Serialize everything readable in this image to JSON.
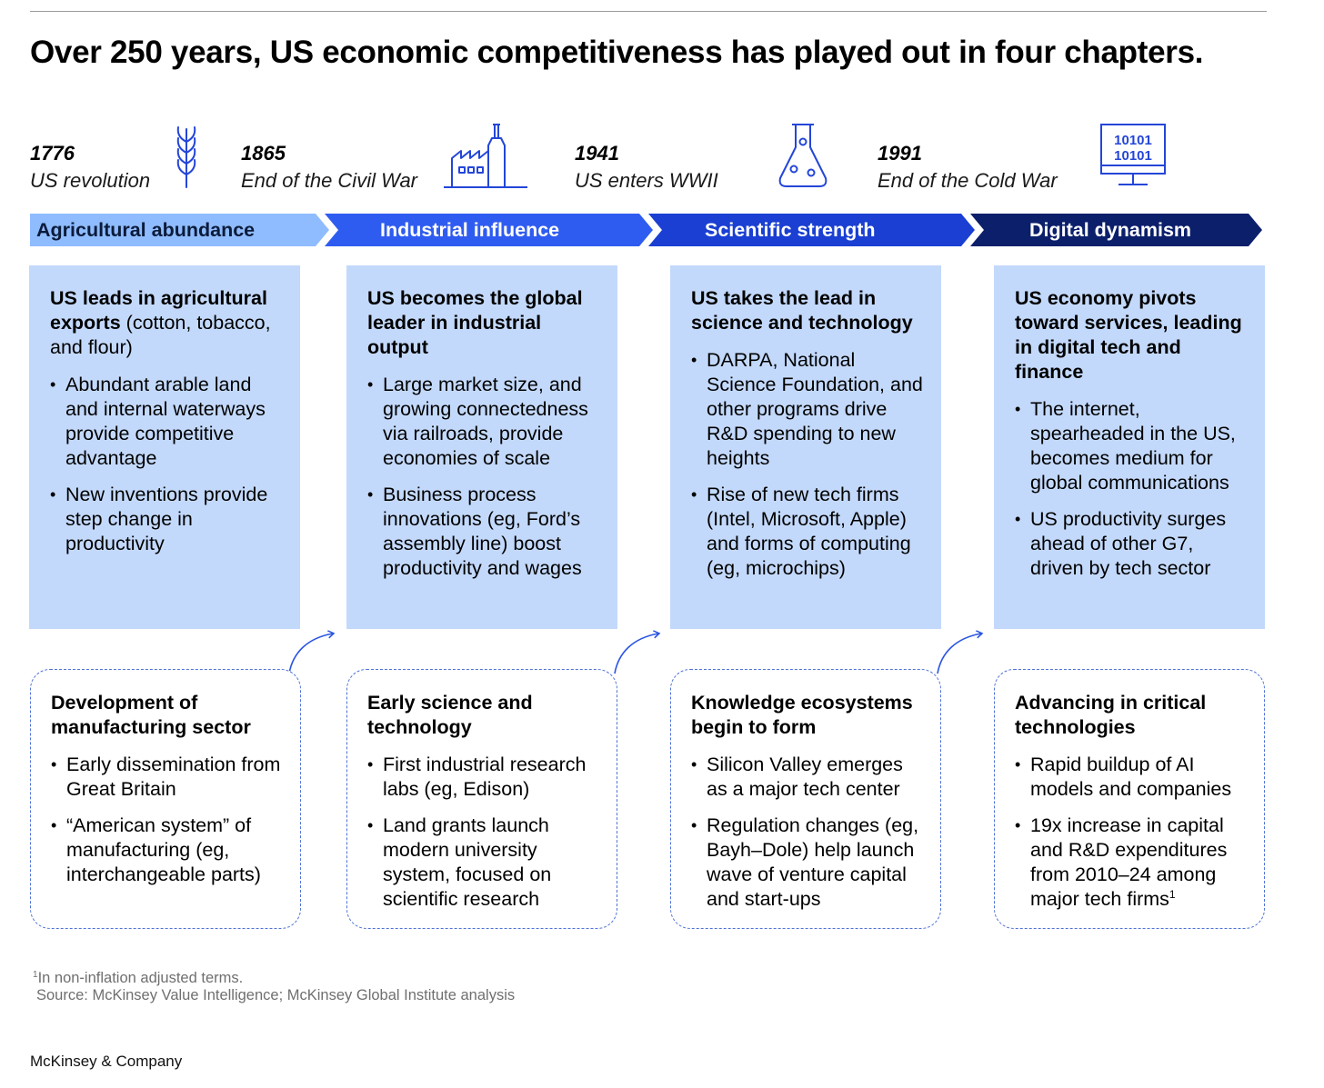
{
  "title": "Over 250 years, US economic competitiveness has played out in four chapters.",
  "eras": [
    {
      "year": "1776",
      "event": "US revolution",
      "icon": "wheat-icon"
    },
    {
      "year": "1865",
      "event": "End of the Civil War",
      "icon": "factory-icon"
    },
    {
      "year": "1941",
      "event": "US enters WWII",
      "icon": "flask-icon"
    },
    {
      "year": "1991",
      "event": "End of the Cold War",
      "icon": "binary-monitor-icon"
    }
  ],
  "icon_binary_text": [
    "10101",
    "10101"
  ],
  "chapters": [
    {
      "label": "Agricultural abundance",
      "color": "#8fbcff",
      "text_color": "#0b1b3a"
    },
    {
      "label": "Industrial influence",
      "color": "#2f5cf0",
      "text_color": "#ffffff"
    },
    {
      "label": "Scientific strength",
      "color": "#1a3fd2",
      "text_color": "#ffffff"
    },
    {
      "label": "Digital dynamism",
      "color": "#0c1f6b",
      "text_color": "#ffffff"
    }
  ],
  "cards": [
    {
      "heading": "US leads in agricultural exports",
      "subheading": "(cotton, tobacco, and flour)",
      "bullets": [
        "Abundant arable land and internal waterways provide competitive advantage",
        "New inventions provide step change in productivity"
      ]
    },
    {
      "heading": "US becomes the global leader in industrial output",
      "subheading": "",
      "bullets": [
        "Large market size, and growing connectedness via railroads, provide economies of scale",
        "Business process innovations (eg, Ford’s assembly line) boost productivity and wages"
      ]
    },
    {
      "heading": "US takes the lead in science and technology",
      "subheading": "",
      "bullets": [
        "DARPA, National Science Foundation, and other programs drive R&D spending to new heights",
        "Rise of new tech firms (Intel, Microsoft, Apple) and forms of computing (eg, microchips)"
      ]
    },
    {
      "heading": "US economy pivots toward services, leading in digital tech and finance",
      "subheading": "",
      "bullets": [
        "The internet, spearheaded in the US, becomes medium for global communications",
        "US productivity surges ahead of other G7, driven by tech sector"
      ]
    }
  ],
  "foundations": [
    {
      "heading": "Development of manufacturing sector",
      "bullets": [
        "Early dissemination from Great Britain",
        "“American system” of manufacturing (eg, interchangeable parts)"
      ]
    },
    {
      "heading": "Early science and technology",
      "bullets": [
        "First industrial research labs (eg, Edison)",
        "Land grants launch modern university system, focused on scientific research"
      ]
    },
    {
      "heading": "Knowledge ecosystems begin to form",
      "bullets": [
        "Silicon Valley emerges as a major tech center",
        "Regulation changes (eg, Bayh–Dole) help launch wave of venture capital and start-ups"
      ]
    },
    {
      "heading": "Advancing in critical technologies",
      "bullets": [
        "Rapid buildup of AI models and companies",
        "19x increase in capital and R&D expenditures from 2010–24 among major tech firms"
      ],
      "footnote_marker": "1"
    }
  ],
  "footnote": {
    "marker": "1",
    "text": "In non-inflation adjusted terms."
  },
  "source": "Source: McKinsey Value Intelligence; McKinsey Global Institute analysis",
  "brand": "McKinsey & Company",
  "colors": {
    "card": "#c3d9fb",
    "dashed_border": "#4f72d6",
    "icon": "#2446d8",
    "connector": "#2a55e0"
  }
}
